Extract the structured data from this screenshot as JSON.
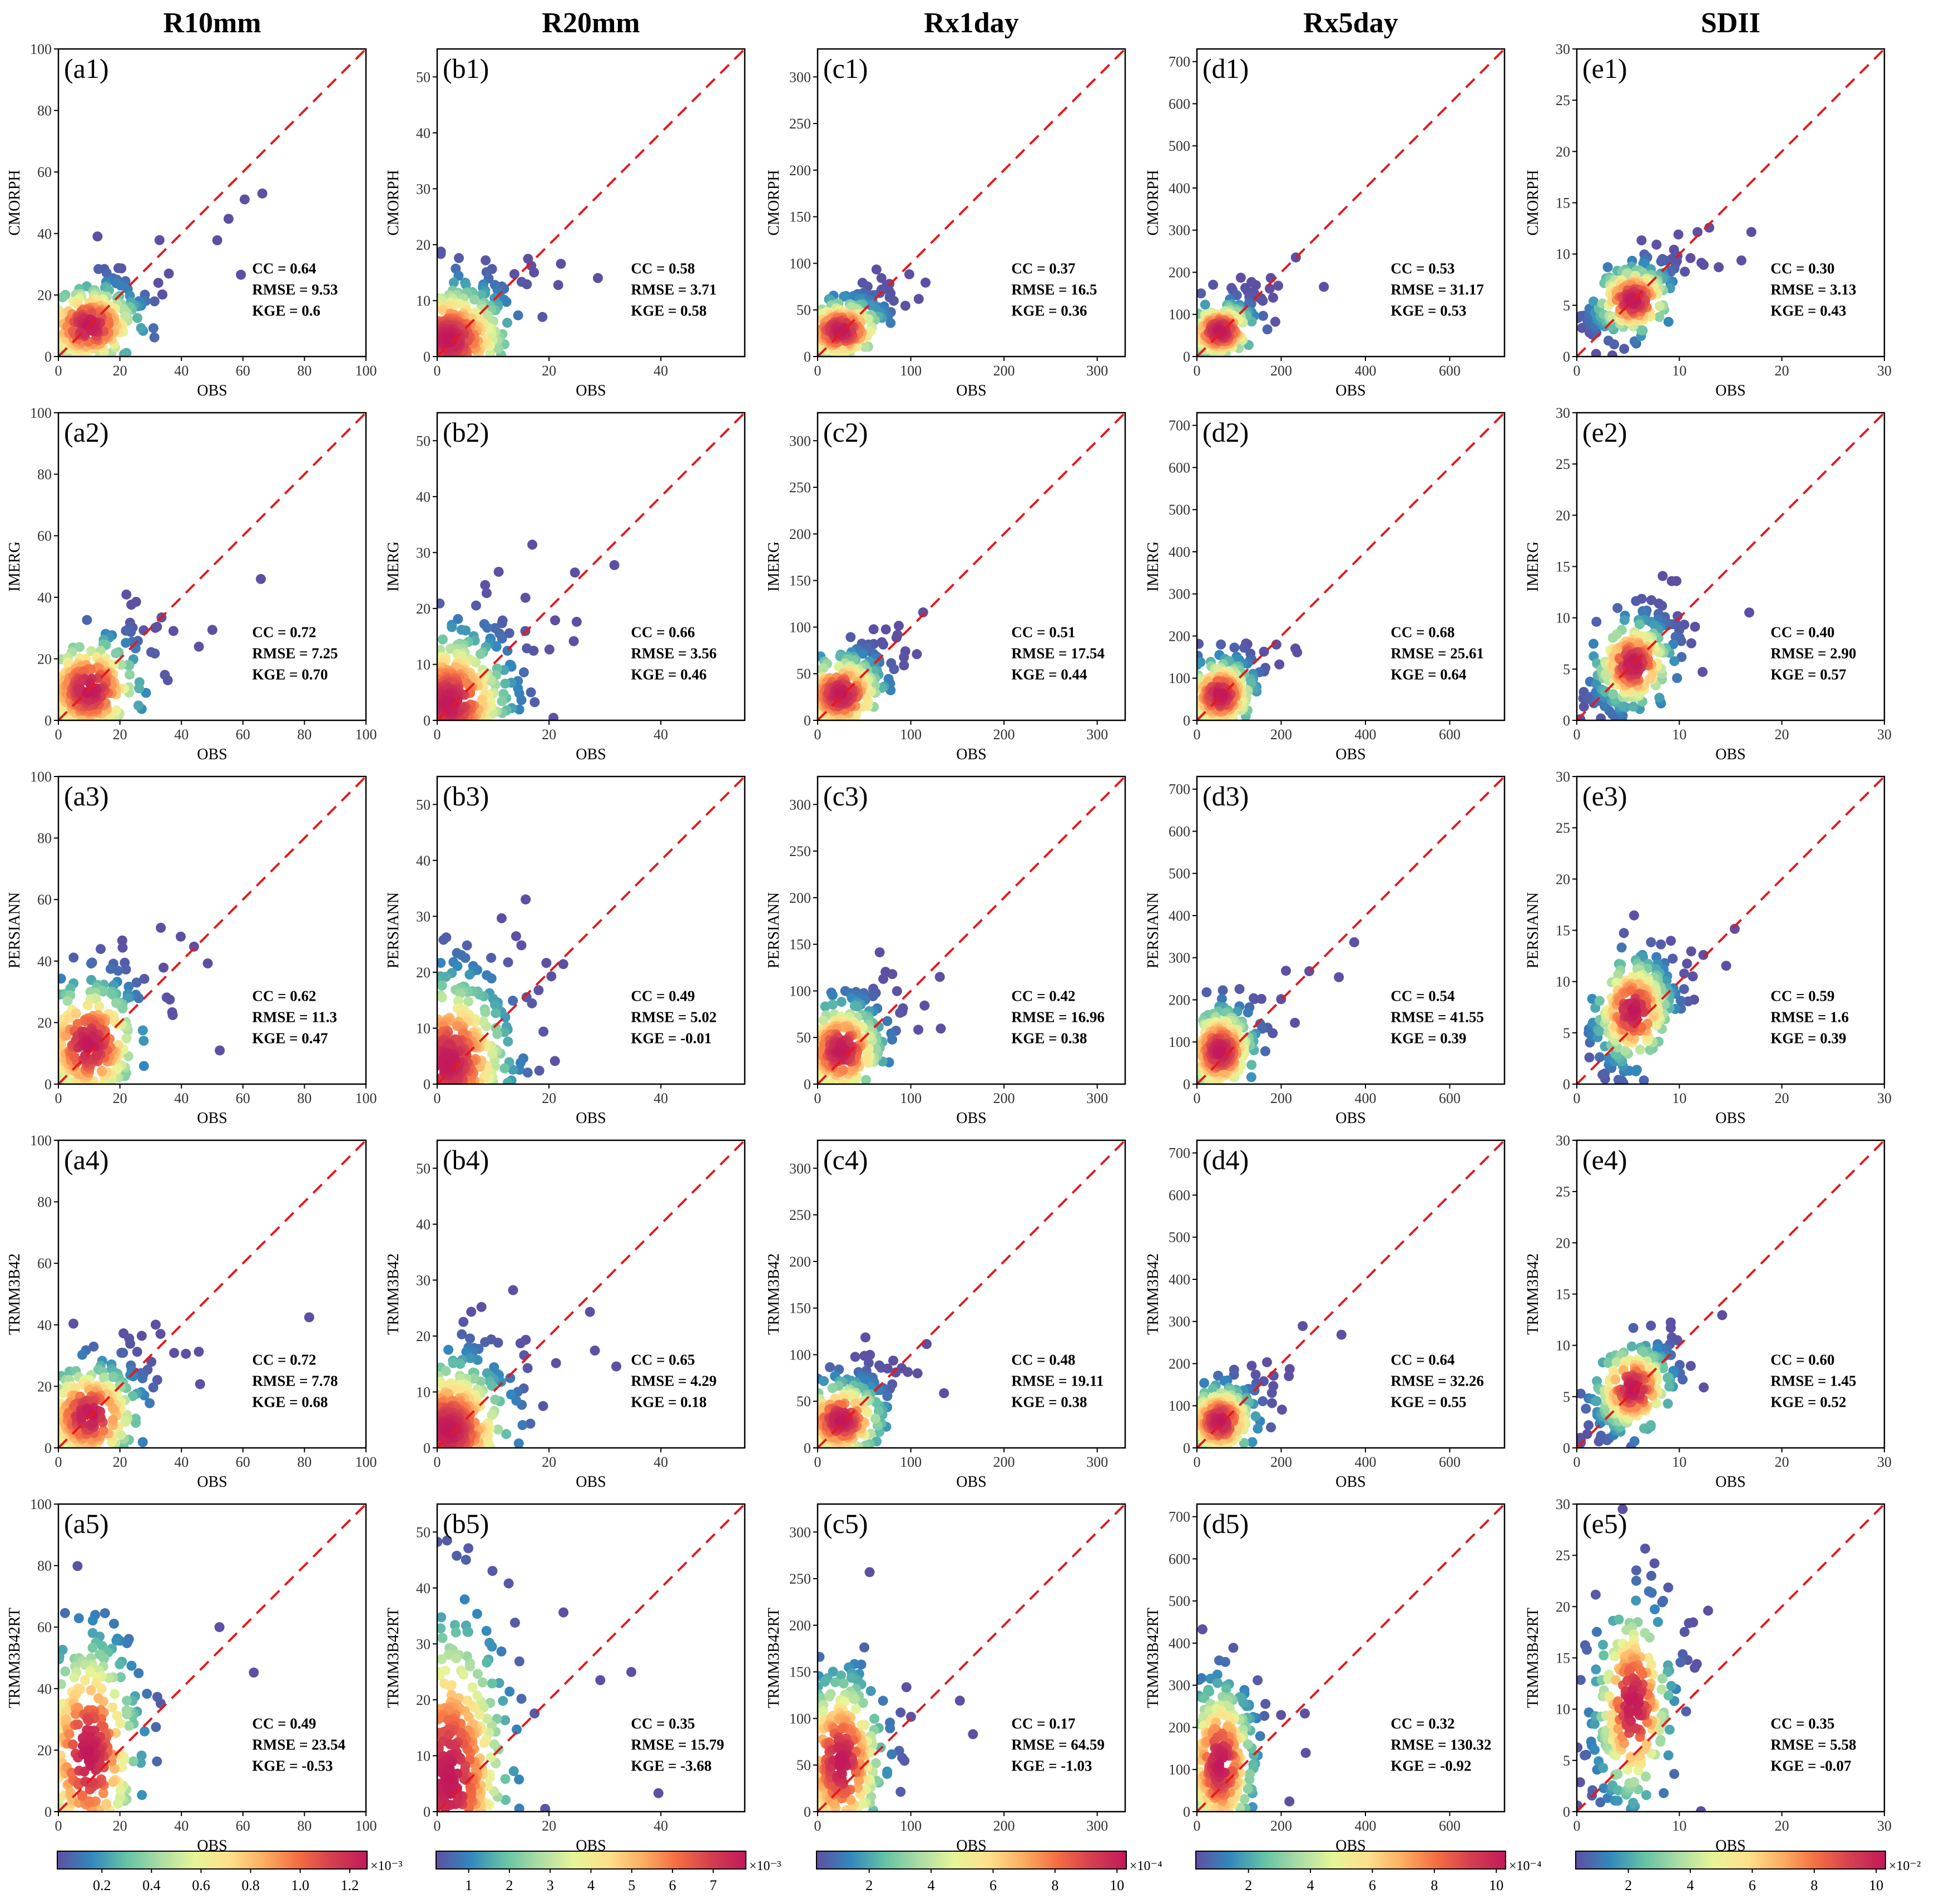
{
  "chart_data": {
    "type": "scatter",
    "description_kind": "density-colored scatter matrix",
    "columns": [
      {
        "id": "a",
        "title": "R10mm",
        "axis_max": 100,
        "ticks": [
          0,
          20,
          40,
          60,
          80,
          100
        ],
        "xticks": [
          0,
          20,
          40,
          60,
          80,
          100
        ],
        "center": [
          10,
          10
        ],
        "spread": [
          9,
          8
        ]
      },
      {
        "id": "b",
        "title": "R20mm",
        "axis_max": 55,
        "ticks": [
          0,
          10,
          20,
          30,
          40,
          50
        ],
        "xticks": [
          0,
          20,
          40
        ],
        "center": [
          2,
          3
        ],
        "spread": [
          6,
          6
        ]
      },
      {
        "id": "c",
        "title": "Rx1day",
        "axis_max": 330,
        "ticks": [
          0,
          50,
          100,
          150,
          200,
          250,
          300
        ],
        "xticks": [
          0,
          100,
          200,
          300
        ],
        "center": [
          25,
          28
        ],
        "spread": [
          25,
          20
        ]
      },
      {
        "id": "d",
        "title": "Rx5day",
        "axis_max": 730,
        "ticks": [
          0,
          100,
          200,
          300,
          400,
          500,
          600,
          700
        ],
        "xticks": [
          0,
          200,
          400,
          600
        ],
        "center": [
          55,
          60
        ],
        "spread": [
          45,
          40
        ]
      },
      {
        "id": "e",
        "title": "SDII",
        "axis_max": 30,
        "ticks": [
          0,
          5,
          10,
          15,
          20,
          25,
          30
        ],
        "xticks": [
          0,
          10,
          20,
          30
        ],
        "center": [
          5.5,
          5.5
        ],
        "spread": [
          2,
          2
        ]
      }
    ],
    "rows": [
      {
        "product": "CMORPH",
        "shift": 0.9,
        "yscale": 1.0
      },
      {
        "product": "IMERG",
        "shift": 1.15,
        "yscale": 1.0
      },
      {
        "product": "PERSIANN",
        "shift": 1.4,
        "yscale": 1.3
      },
      {
        "product": "TRMM3B42",
        "shift": 1.15,
        "yscale": 1.05
      },
      {
        "product": "TRMM3B42RT",
        "shift": 2.6,
        "yscale": 1.9
      }
    ],
    "xlabel": "OBS",
    "stats": [
      [
        {
          "cc": "CC = 0.64",
          "rmse": "RMSE = 9.53",
          "kge": "KGE = 0.6"
        },
        {
          "cc": "CC = 0.58",
          "rmse": "RMSE = 3.71",
          "kge": "KGE = 0.58"
        },
        {
          "cc": "CC = 0.37",
          "rmse": "RMSE = 16.5",
          "kge": "KGE = 0.36"
        },
        {
          "cc": "CC = 0.53",
          "rmse": "RMSE = 31.17",
          "kge": "KGE = 0.53"
        },
        {
          "cc": "CC = 0.30",
          "rmse": "RMSE = 3.13",
          "kge": "KGE = 0.43"
        }
      ],
      [
        {
          "cc": "CC = 0.72",
          "rmse": "RMSE = 7.25",
          "kge": "KGE = 0.70"
        },
        {
          "cc": "CC = 0.66",
          "rmse": "RMSE = 3.56",
          "kge": "KGE = 0.46"
        },
        {
          "cc": "CC = 0.51",
          "rmse": "RMSE = 17.54",
          "kge": "KGE = 0.44"
        },
        {
          "cc": "CC = 0.68",
          "rmse": "RMSE = 25.61",
          "kge": "KGE = 0.64"
        },
        {
          "cc": "CC = 0.40",
          "rmse": "RMSE = 2.90",
          "kge": "KGE = 0.57"
        }
      ],
      [
        {
          "cc": "CC = 0.62",
          "rmse": "RMSE = 11.3",
          "kge": "KGE = 0.47"
        },
        {
          "cc": "CC = 0.49",
          "rmse": "RMSE = 5.02",
          "kge": "KGE = -0.01"
        },
        {
          "cc": "CC = 0.42",
          "rmse": "RMSE = 16.96",
          "kge": "KGE = 0.38"
        },
        {
          "cc": "CC = 0.54",
          "rmse": "RMSE = 41.55",
          "kge": "KGE = 0.39"
        },
        {
          "cc": "CC = 0.59",
          "rmse": "RMSE = 1.6",
          "kge": "KGE = 0.39"
        }
      ],
      [
        {
          "cc": "CC = 0.72",
          "rmse": "RMSE = 7.78",
          "kge": "KGE = 0.68"
        },
        {
          "cc": "CC = 0.65",
          "rmse": "RMSE = 4.29",
          "kge": "KGE = 0.18"
        },
        {
          "cc": "CC = 0.48",
          "rmse": "RMSE = 19.11",
          "kge": "KGE = 0.38"
        },
        {
          "cc": "CC = 0.64",
          "rmse": "RMSE = 32.26",
          "kge": "KGE = 0.55"
        },
        {
          "cc": "CC = 0.60",
          "rmse": "RMSE = 1.45",
          "kge": "KGE = 0.52"
        }
      ],
      [
        {
          "cc": "CC = 0.49",
          "rmse": "RMSE = 23.54",
          "kge": "KGE = -0.53"
        },
        {
          "cc": "CC = 0.35",
          "rmse": "RMSE = 15.79",
          "kge": "KGE = -3.68"
        },
        {
          "cc": "CC = 0.17",
          "rmse": "RMSE = 64.59",
          "kge": "KGE = -1.03"
        },
        {
          "cc": "CC = 0.32",
          "rmse": "RMSE = 130.32",
          "kge": "KGE = -0.92"
        },
        {
          "cc": "CC = 0.35",
          "rmse": "RMSE = 5.58",
          "kge": "KGE = -0.07"
        }
      ]
    ],
    "colorbars": [
      {
        "ticks": [
          "0.2",
          "0.4",
          "0.6",
          "0.8",
          "1.0",
          "1.2"
        ],
        "tick_values": [
          0.2,
          0.4,
          0.6,
          0.8,
          1.0,
          1.2
        ],
        "range": [
          0.02,
          1.27
        ],
        "exponent": "×10⁻³"
      },
      {
        "ticks": [
          "1",
          "2",
          "3",
          "4",
          "5",
          "6",
          "7"
        ],
        "tick_values": [
          1,
          2,
          3,
          4,
          5,
          6,
          7
        ],
        "range": [
          0.2,
          7.8
        ],
        "exponent": "×10⁻³"
      },
      {
        "ticks": [
          "2",
          "4",
          "6",
          "8",
          "10"
        ],
        "tick_values": [
          2,
          4,
          6,
          8,
          10
        ],
        "range": [
          0.3,
          10.3
        ],
        "exponent": "×10⁻⁴"
      },
      {
        "ticks": [
          "2",
          "4",
          "6",
          "8",
          "10"
        ],
        "tick_values": [
          2,
          4,
          6,
          8,
          10
        ],
        "range": [
          0.3,
          10.3
        ],
        "exponent": "×10⁻⁴"
      },
      {
        "ticks": [
          "2",
          "4",
          "6",
          "8",
          "10"
        ],
        "tick_values": [
          2,
          4,
          6,
          8,
          10
        ],
        "range": [
          0.3,
          10.3
        ],
        "exponent": "×10⁻²"
      }
    ],
    "reference_line": "1:1 red dashed",
    "colormap": [
      "#5e4fa2",
      "#3288bd",
      "#66c2a5",
      "#abdda4",
      "#e6f598",
      "#fee08b",
      "#fdae61",
      "#f46d43",
      "#d53e4f",
      "#c2185b"
    ]
  }
}
